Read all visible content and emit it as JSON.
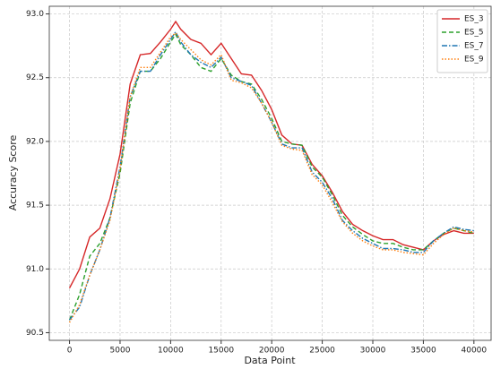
{
  "chart_data": {
    "type": "line",
    "xlabel": "Data Point",
    "ylabel": "Accuracy Score",
    "x": [
      0,
      1000,
      2000,
      3000,
      4000,
      5000,
      6000,
      7000,
      8000,
      9000,
      10000,
      10500,
      11000,
      12000,
      13000,
      14000,
      15000,
      16000,
      17000,
      18000,
      19000,
      20000,
      21000,
      22000,
      23000,
      24000,
      25000,
      26000,
      27000,
      28000,
      29000,
      30000,
      31000,
      32000,
      33000,
      34000,
      35000,
      36000,
      37000,
      38000,
      39000,
      40000
    ],
    "series": [
      {
        "name": "ES_3",
        "color": "#d62728",
        "linestyle": "solid",
        "values": [
          90.85,
          91.0,
          91.25,
          91.32,
          91.55,
          91.9,
          92.45,
          92.68,
          92.69,
          92.78,
          92.88,
          92.94,
          92.88,
          92.8,
          92.77,
          92.68,
          92.77,
          92.65,
          92.53,
          92.52,
          92.4,
          92.25,
          92.05,
          91.98,
          91.97,
          91.82,
          91.73,
          91.6,
          91.45,
          91.35,
          91.3,
          91.26,
          91.23,
          91.23,
          91.19,
          91.17,
          91.15,
          91.22,
          91.27,
          91.3,
          91.28,
          91.28
        ]
      },
      {
        "name": "ES_5",
        "color": "#2ca02c",
        "linestyle": "dashed",
        "values": [
          90.6,
          90.8,
          91.1,
          91.2,
          91.4,
          91.75,
          92.3,
          92.55,
          92.55,
          92.65,
          92.78,
          92.84,
          92.76,
          92.68,
          92.58,
          92.55,
          92.65,
          92.52,
          92.47,
          92.45,
          92.33,
          92.18,
          92.0,
          91.98,
          91.97,
          91.8,
          91.72,
          91.58,
          91.42,
          91.33,
          91.27,
          91.22,
          91.2,
          91.2,
          91.17,
          91.15,
          91.15,
          91.22,
          91.28,
          91.32,
          91.3,
          91.28
        ]
      },
      {
        "name": "ES_7",
        "color": "#1f77b4",
        "linestyle": "dashdot",
        "values": [
          90.6,
          90.7,
          90.95,
          91.15,
          91.4,
          91.8,
          92.35,
          92.55,
          92.55,
          92.68,
          92.8,
          92.86,
          92.78,
          92.68,
          92.62,
          92.58,
          92.66,
          92.5,
          92.47,
          92.44,
          92.3,
          92.15,
          91.98,
          91.95,
          91.95,
          91.76,
          91.68,
          91.55,
          91.38,
          91.3,
          91.24,
          91.2,
          91.16,
          91.16,
          91.15,
          91.13,
          91.13,
          91.22,
          91.28,
          91.33,
          91.31,
          91.3
        ]
      },
      {
        "name": "ES_9",
        "color": "#ff7f0e",
        "linestyle": "dotted",
        "values": [
          90.58,
          90.72,
          90.95,
          91.15,
          91.38,
          91.78,
          92.35,
          92.58,
          92.58,
          92.7,
          92.82,
          92.85,
          92.8,
          92.72,
          92.64,
          92.6,
          92.68,
          92.48,
          92.46,
          92.42,
          92.3,
          92.15,
          91.97,
          91.94,
          91.93,
          91.74,
          91.66,
          91.52,
          91.37,
          91.28,
          91.22,
          91.18,
          91.15,
          91.15,
          91.13,
          91.12,
          91.11,
          91.2,
          91.27,
          91.32,
          91.3,
          91.29
        ]
      }
    ],
    "xlim": [
      -2000,
      41700
    ],
    "ylim": [
      90.44,
      93.06
    ],
    "xticks": [
      0,
      5000,
      10000,
      15000,
      20000,
      25000,
      30000,
      35000,
      40000
    ],
    "yticks": [
      90.5,
      {
        "value": 91,
        "label": "91.0"
      },
      91.5,
      {
        "value": 92,
        "label": "92.0"
      },
      92.5,
      {
        "value": 93,
        "label": "93.0"
      }
    ],
    "grid": true,
    "legend": "upper right"
  }
}
